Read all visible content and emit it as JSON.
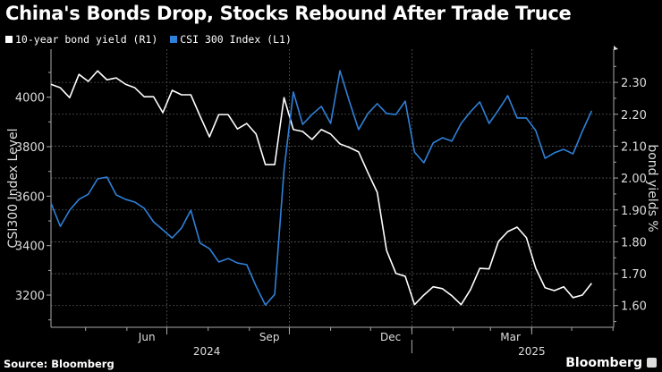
{
  "chart_data": {
    "type": "line",
    "title": "China's Bonds Drop, Stocks Rebound After Trade Truce",
    "source": "Source: Bloomberg",
    "brand": "Bloomberg",
    "x_start": "2024-04-05",
    "x_frequency": "weekly",
    "x_tick_labels": [
      {
        "label": "Jun",
        "month": "2024-06"
      },
      {
        "label": "Sep",
        "month": "2024-09"
      },
      {
        "label": "Dec",
        "month": "2024-12"
      },
      {
        "label": "Mar",
        "month": "2025-03"
      }
    ],
    "year_labels": [
      {
        "label": "2024",
        "center": "2024-07-31"
      },
      {
        "label": "2025",
        "center": "2025-04-01"
      }
    ],
    "left_axis": {
      "label": "CSI300 Index Level",
      "ylim": [
        3070,
        4194
      ],
      "ticks": [
        3200,
        3400,
        3600,
        3800,
        4000
      ]
    },
    "right_axis": {
      "label": "bond yields %",
      "ylim": [
        1.532,
        2.404
      ],
      "ticks": [
        "1.60",
        "1.70",
        "1.80",
        "1.90",
        "2.00",
        "2.10",
        "2.20",
        "2.30"
      ]
    },
    "grid": true,
    "legend_position": "top-left",
    "series": [
      {
        "name": "10-year bond yield  (R1)",
        "axis": "right",
        "color": "#ffffff",
        "values": [
          2.294,
          2.283,
          2.252,
          2.325,
          2.303,
          2.336,
          2.308,
          2.314,
          2.294,
          2.283,
          2.255,
          2.255,
          2.205,
          2.275,
          2.261,
          2.261,
          2.194,
          2.129,
          2.199,
          2.199,
          2.154,
          2.171,
          2.138,
          2.042,
          2.042,
          2.252,
          2.152,
          2.146,
          2.121,
          2.152,
          2.138,
          2.107,
          2.096,
          2.082,
          2.017,
          1.955,
          1.773,
          1.701,
          1.692,
          1.603,
          1.633,
          1.659,
          1.653,
          1.631,
          1.603,
          1.65,
          1.717,
          1.715,
          1.801,
          1.832,
          1.846,
          1.813,
          1.717,
          1.656,
          1.647,
          1.659,
          1.625,
          1.633,
          1.67
        ]
      },
      {
        "name": "CSI 300 Index (L1)",
        "axis": "left",
        "color": "#2f80d8",
        "values": [
          3572,
          3478,
          3543,
          3587,
          3608,
          3670,
          3677,
          3605,
          3587,
          3576,
          3551,
          3496,
          3464,
          3431,
          3471,
          3543,
          3410,
          3388,
          3334,
          3348,
          3330,
          3323,
          3236,
          3160,
          3203,
          3706,
          4021,
          3890,
          3930,
          3963,
          3894,
          4107,
          3984,
          3869,
          3934,
          3974,
          3934,
          3930,
          3984,
          3778,
          3735,
          3815,
          3836,
          3822,
          3894,
          3941,
          3981,
          3894,
          3948,
          4006,
          3916,
          3916,
          3865,
          3753,
          3775,
          3789,
          3771,
          3862,
          3945
        ]
      }
    ]
  }
}
